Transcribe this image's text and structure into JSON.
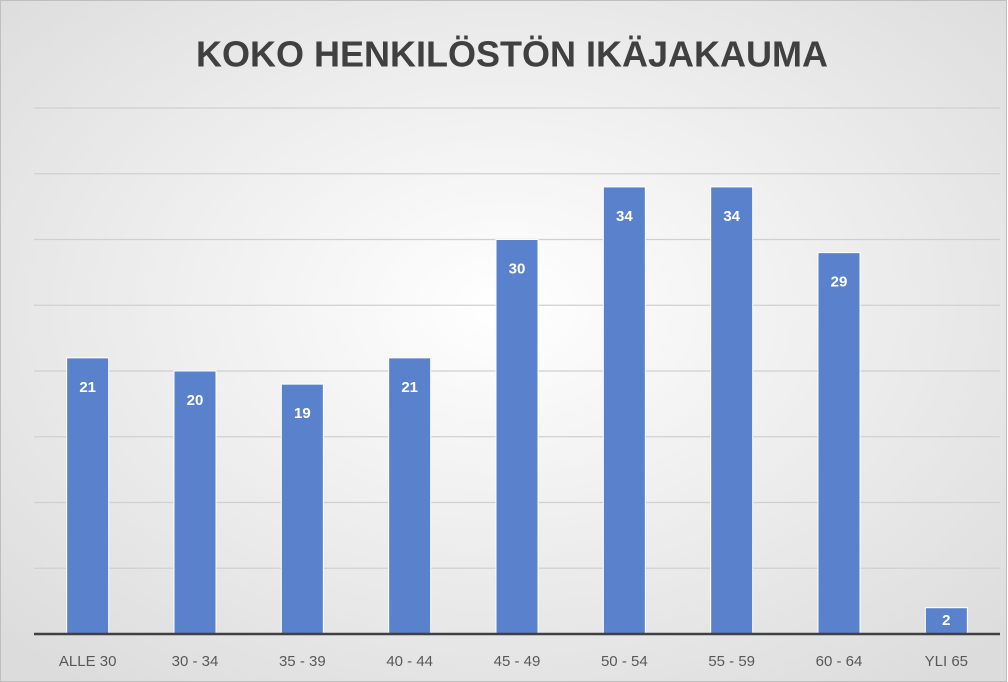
{
  "chart_data": {
    "type": "bar",
    "title": "KOKO HENKILÖSTÖN IKÄJAKAUMA",
    "categories": [
      "ALLE 30",
      "30 - 34",
      "35 - 39",
      "40 - 44",
      "45 - 49",
      "50 - 54",
      "55 - 59",
      "60 - 64",
      "YLI 65"
    ],
    "values": [
      21,
      20,
      19,
      21,
      30,
      34,
      34,
      29,
      2
    ],
    "color": "#5a81cc",
    "ylim": [
      0,
      40
    ],
    "yticks": [
      0,
      5,
      10,
      15,
      20,
      25,
      30,
      35,
      40
    ],
    "grid": true
  }
}
